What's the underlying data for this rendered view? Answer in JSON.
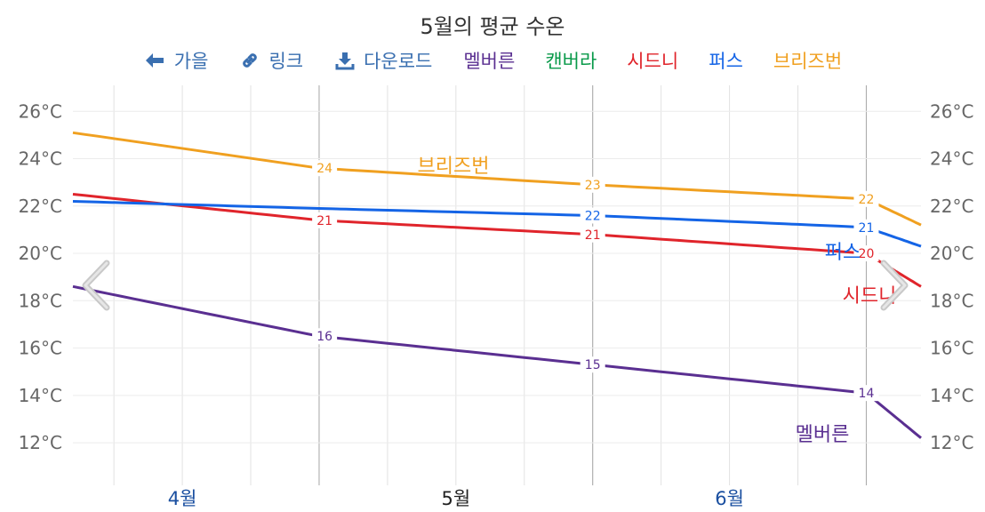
{
  "title": "5월의 평균 수온",
  "toolbar": {
    "back_label": "가을",
    "link_label": "링크",
    "download_label": "다운로드"
  },
  "colors": {
    "link": "#3a6fb0",
    "melbourne": "#5a2f91",
    "canberra": "#0a9a4a",
    "sydney": "#e0242b",
    "perth": "#1464e6",
    "brisbane": "#f0a020"
  },
  "chart_data": {
    "type": "line",
    "title": "5월의 평균 수온",
    "x_axis": {
      "ticks": [
        "4월",
        "5월",
        "6월"
      ],
      "range": [
        3.1,
        6.2
      ]
    },
    "y_axis": {
      "ticks": [
        "12°C",
        "14°C",
        "16°C",
        "18°C",
        "20°C",
        "22°C",
        "24°C",
        "26°C"
      ],
      "range": [
        10.2,
        27.1
      ],
      "unit": "°C",
      "show_on_both_sides": true
    },
    "grid": true,
    "legend_position": "top",
    "series": [
      {
        "name": "멜버른",
        "key": "melbourne",
        "points": [
          [
            3.1,
            18.6
          ],
          [
            4.0,
            16.5
          ],
          [
            5.0,
            15.3
          ],
          [
            6.0,
            14.1
          ],
          [
            6.2,
            12.2
          ]
        ],
        "labeled": [
          16,
          15,
          14
        ],
        "end_label": "멜버른"
      },
      {
        "name": "캔버라",
        "key": "canberra",
        "points": [],
        "labeled": [],
        "end_label": ""
      },
      {
        "name": "시드니",
        "key": "sydney",
        "points": [
          [
            3.1,
            22.5
          ],
          [
            4.0,
            21.4
          ],
          [
            5.0,
            20.8
          ],
          [
            6.0,
            20.0
          ],
          [
            6.2,
            18.6
          ]
        ],
        "labeled": [
          21,
          21,
          20
        ],
        "end_label": "시드니"
      },
      {
        "name": "퍼스",
        "key": "perth",
        "points": [
          [
            3.1,
            22.2
          ],
          [
            4.0,
            21.9
          ],
          [
            5.0,
            21.6
          ],
          [
            6.0,
            21.1
          ],
          [
            6.2,
            20.3
          ]
        ],
        "labeled": [
          null,
          22,
          21
        ],
        "end_label": "퍼스"
      },
      {
        "name": "브리즈번",
        "key": "brisbane",
        "points": [
          [
            3.1,
            25.1
          ],
          [
            4.0,
            23.6
          ],
          [
            5.0,
            22.9
          ],
          [
            6.0,
            22.3
          ],
          [
            6.2,
            21.2
          ]
        ],
        "labeled": [
          24,
          23,
          22
        ],
        "end_label": "브리즈번"
      }
    ]
  }
}
